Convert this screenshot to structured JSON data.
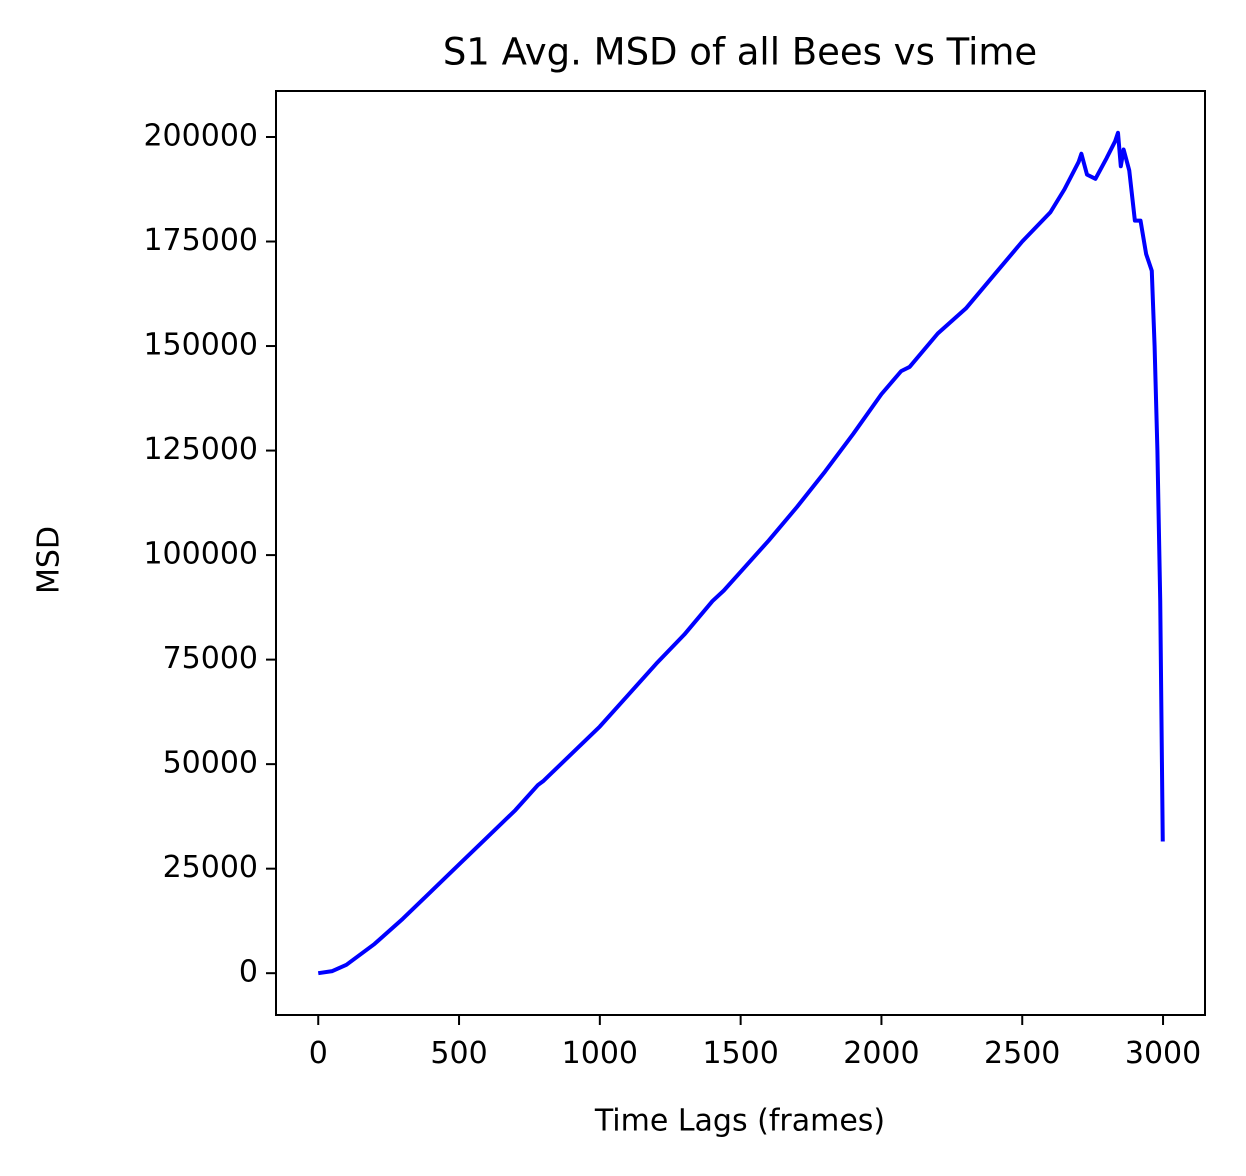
{
  "chart_data": {
    "type": "line",
    "title": "S1 Avg. MSD of all Bees vs Time",
    "xlabel": "Time Lags (frames)",
    "ylabel": "MSD",
    "x": [
      0,
      50,
      100,
      200,
      300,
      400,
      500,
      600,
      700,
      780,
      800,
      900,
      1000,
      1100,
      1200,
      1300,
      1400,
      1440,
      1500,
      1600,
      1700,
      1800,
      1900,
      2000,
      2070,
      2100,
      2200,
      2300,
      2400,
      2500,
      2600,
      2650,
      2700,
      2710,
      2730,
      2760,
      2800,
      2830,
      2840,
      2850,
      2860,
      2880,
      2900,
      2920,
      2940,
      2950,
      2960,
      2970,
      2980,
      2990,
      2999
    ],
    "series": [
      {
        "name": "MSD",
        "color": "#0000ff",
        "values": [
          0,
          500,
          2000,
          7000,
          13000,
          19500,
          26000,
          32500,
          39000,
          45000,
          46000,
          52500,
          59000,
          66500,
          74000,
          81000,
          89000,
          91500,
          96000,
          103500,
          111500,
          120000,
          129000,
          138500,
          144000,
          145000,
          153000,
          159000,
          167000,
          175000,
          182000,
          187500,
          194000,
          196000,
          191000,
          190000,
          195000,
          199000,
          201000,
          193000,
          197000,
          192000,
          180000,
          180000,
          172000,
          170000,
          168000,
          150000,
          125000,
          89000,
          31500
        ]
      }
    ],
    "xlim": [
      -150,
      3149
    ],
    "ylim": [
      -10000,
      211000
    ],
    "xticks": [
      0,
      500,
      1000,
      1500,
      2000,
      2500,
      3000
    ],
    "yticks": [
      0,
      25000,
      50000,
      75000,
      100000,
      125000,
      150000,
      175000,
      200000
    ]
  }
}
